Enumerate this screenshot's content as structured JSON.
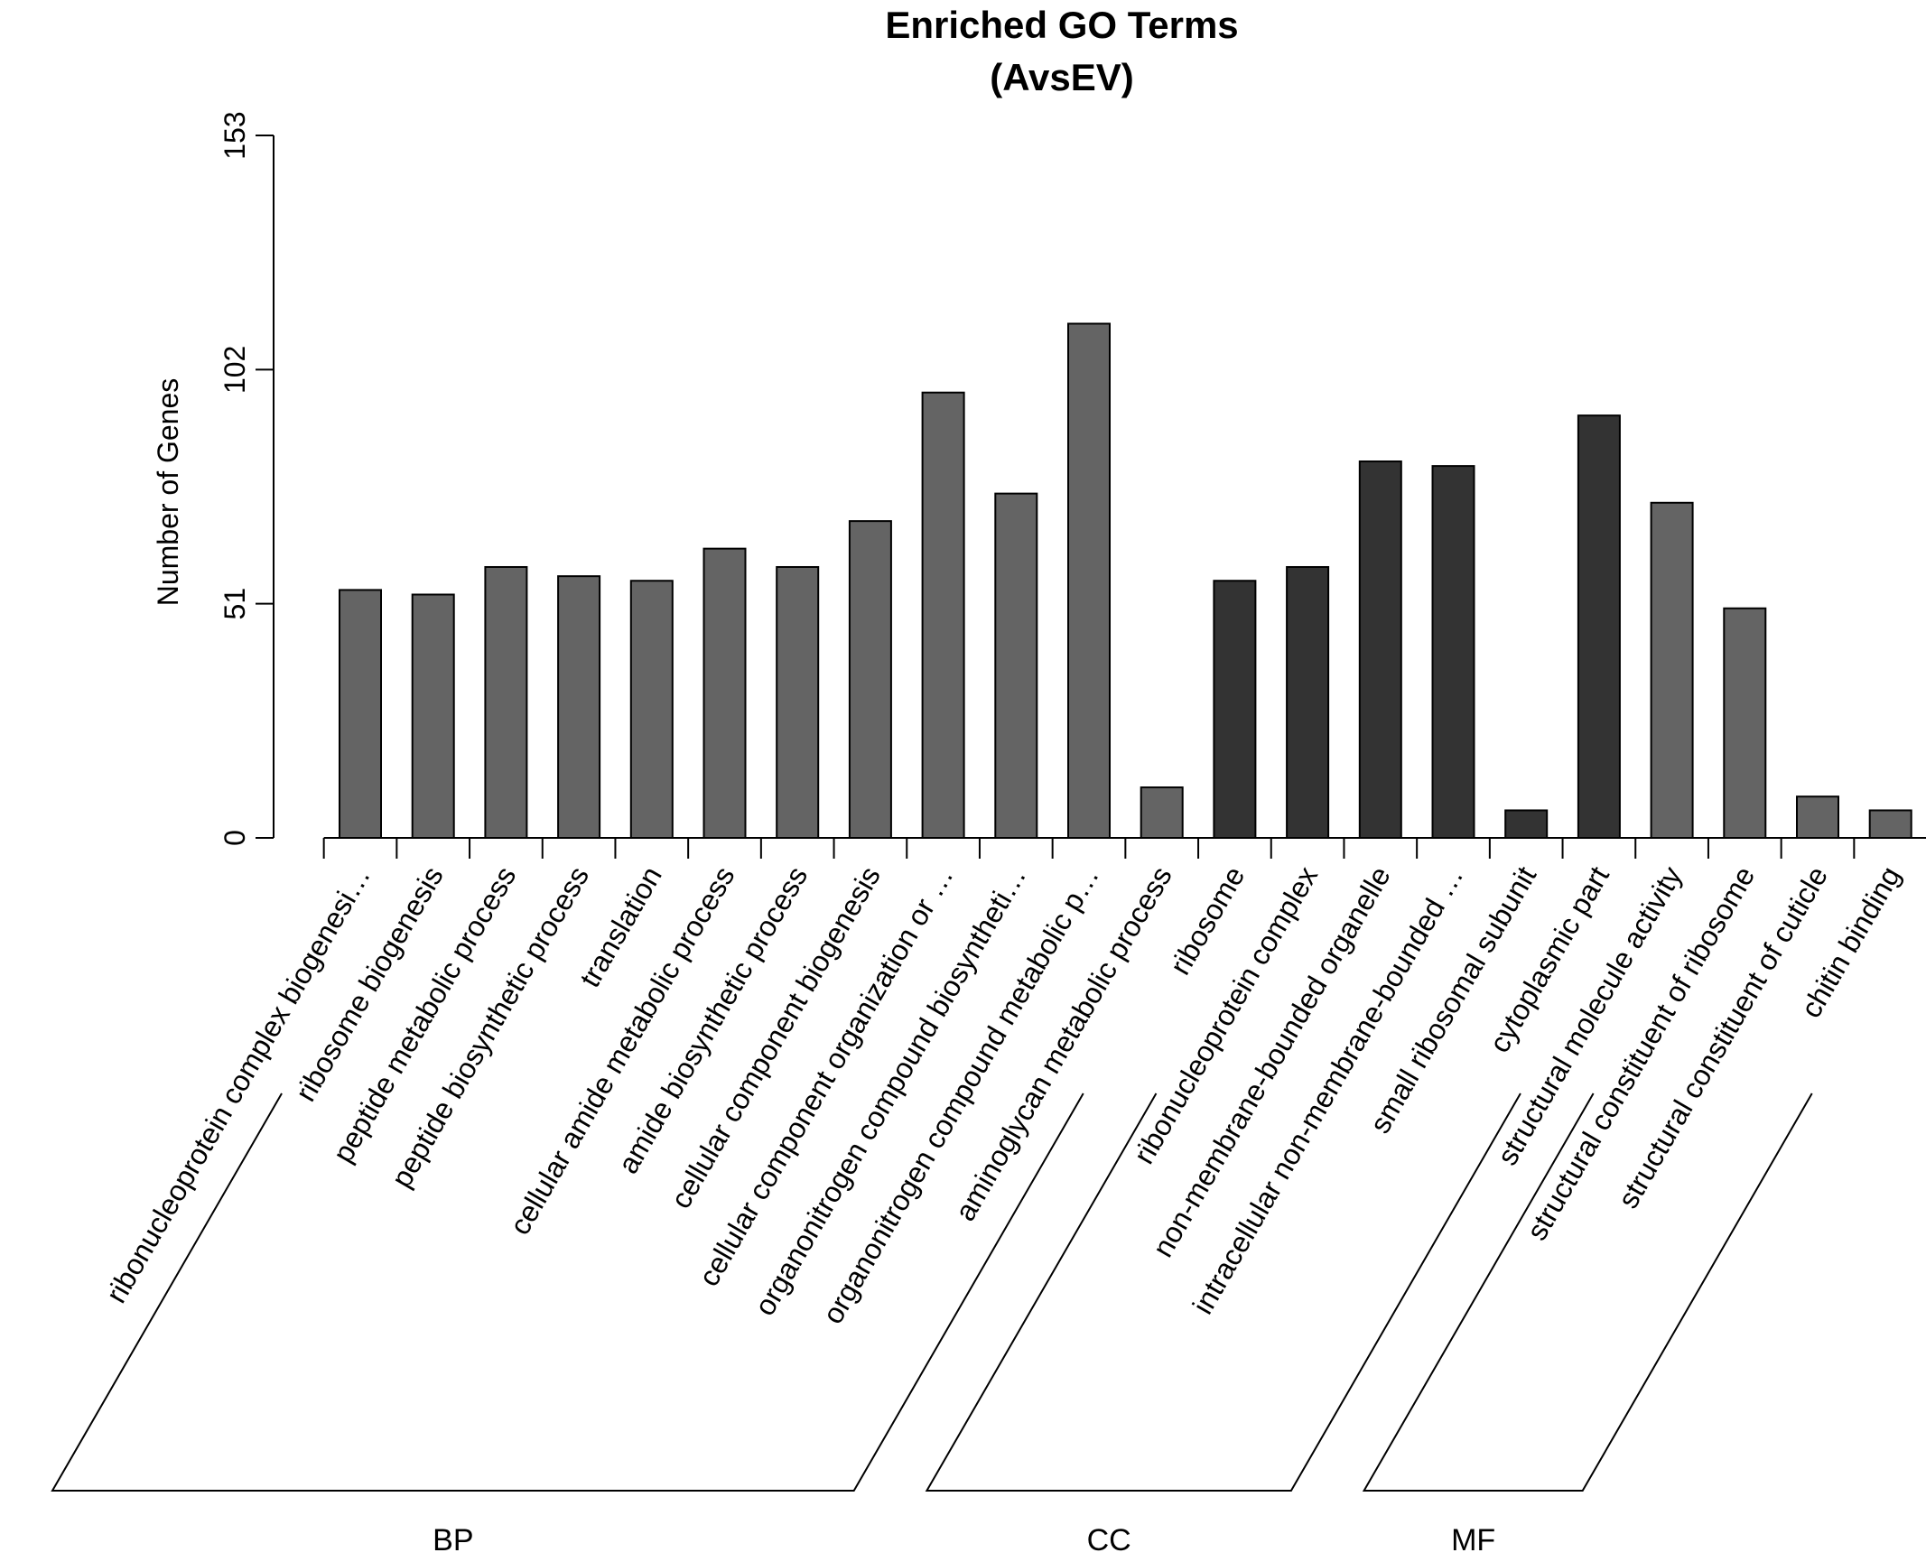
{
  "chart_data": {
    "type": "bar",
    "title": [
      "Enriched GO Terms",
      "(AvsEV)"
    ],
    "xlabel": "",
    "ylabel": "Number of Genes",
    "ylim": [
      0,
      153
    ],
    "yticks": [
      0,
      51,
      102,
      153
    ],
    "colors": {
      "BP": "#646464",
      "CC": "#333333",
      "MF": "#646464"
    },
    "categories": [
      "ribonucleoprotein complex biogenesi…",
      "ribosome biogenesis",
      "peptide metabolic process",
      "peptide biosynthetic process",
      "translation",
      "cellular amide metabolic process",
      "amide biosynthetic process",
      "cellular component biogenesis",
      "cellular component organization or …",
      "organonitrogen compound biosyntheti…",
      "organonitrogen compound metabolic p…",
      "aminoglycan metabolic process",
      "ribosome",
      "ribonucleoprotein complex",
      "non-membrane-bounded organelle",
      "intracellular non-membrane-bounded …",
      "small ribosomal subunit",
      "cytoplasmic part",
      "structural molecule activity",
      "structural constituent of ribosome",
      "structural constituent of cuticle",
      "chitin binding"
    ],
    "values": [
      54,
      53,
      59,
      57,
      56,
      63,
      59,
      69,
      97,
      75,
      112,
      11,
      56,
      59,
      82,
      81,
      6,
      92,
      73,
      50,
      9,
      6
    ],
    "groups": [
      "BP",
      "BP",
      "BP",
      "BP",
      "BP",
      "BP",
      "BP",
      "BP",
      "BP",
      "BP",
      "BP",
      "BP",
      "CC",
      "CC",
      "CC",
      "CC",
      "CC",
      "CC",
      "MF",
      "MF",
      "MF",
      "MF"
    ],
    "group_labels": [
      {
        "name": "BP",
        "start": 0,
        "end": 11
      },
      {
        "name": "CC",
        "start": 12,
        "end": 17
      },
      {
        "name": "MF",
        "start": 18,
        "end": 21
      }
    ]
  }
}
